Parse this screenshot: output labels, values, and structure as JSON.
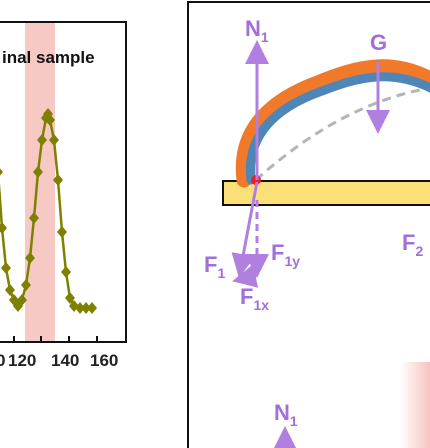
{
  "left_panel": {
    "title_fragment": "inal sample",
    "x_tick_labels": [
      "0",
      "120",
      "140",
      "160"
    ],
    "highlight_color": "#f7c9c4",
    "marker_color": "#808000"
  },
  "right_panel": {
    "forces": {
      "N1": {
        "main": "N",
        "sub": "1"
      },
      "G": {
        "main": "G"
      },
      "F1": {
        "main": "F",
        "sub": "1"
      },
      "F1y": {
        "main": "F",
        "sub": "1y"
      },
      "F1x": {
        "main": "F",
        "sub": "1x"
      },
      "F2y": {
        "main": "F",
        "sub": "2"
      },
      "N1_lower": {
        "main": "N",
        "sub": "1"
      }
    },
    "colors": {
      "force_arrow": "#b07fe0",
      "label_text": "#a070d8",
      "bar_fill": "#fbe07a",
      "droplet_outer": "#f07a2a",
      "droplet_inner": "#4f86b8",
      "contact_point": "#e8202a",
      "dashed_path": "#b5b5b5"
    }
  }
}
